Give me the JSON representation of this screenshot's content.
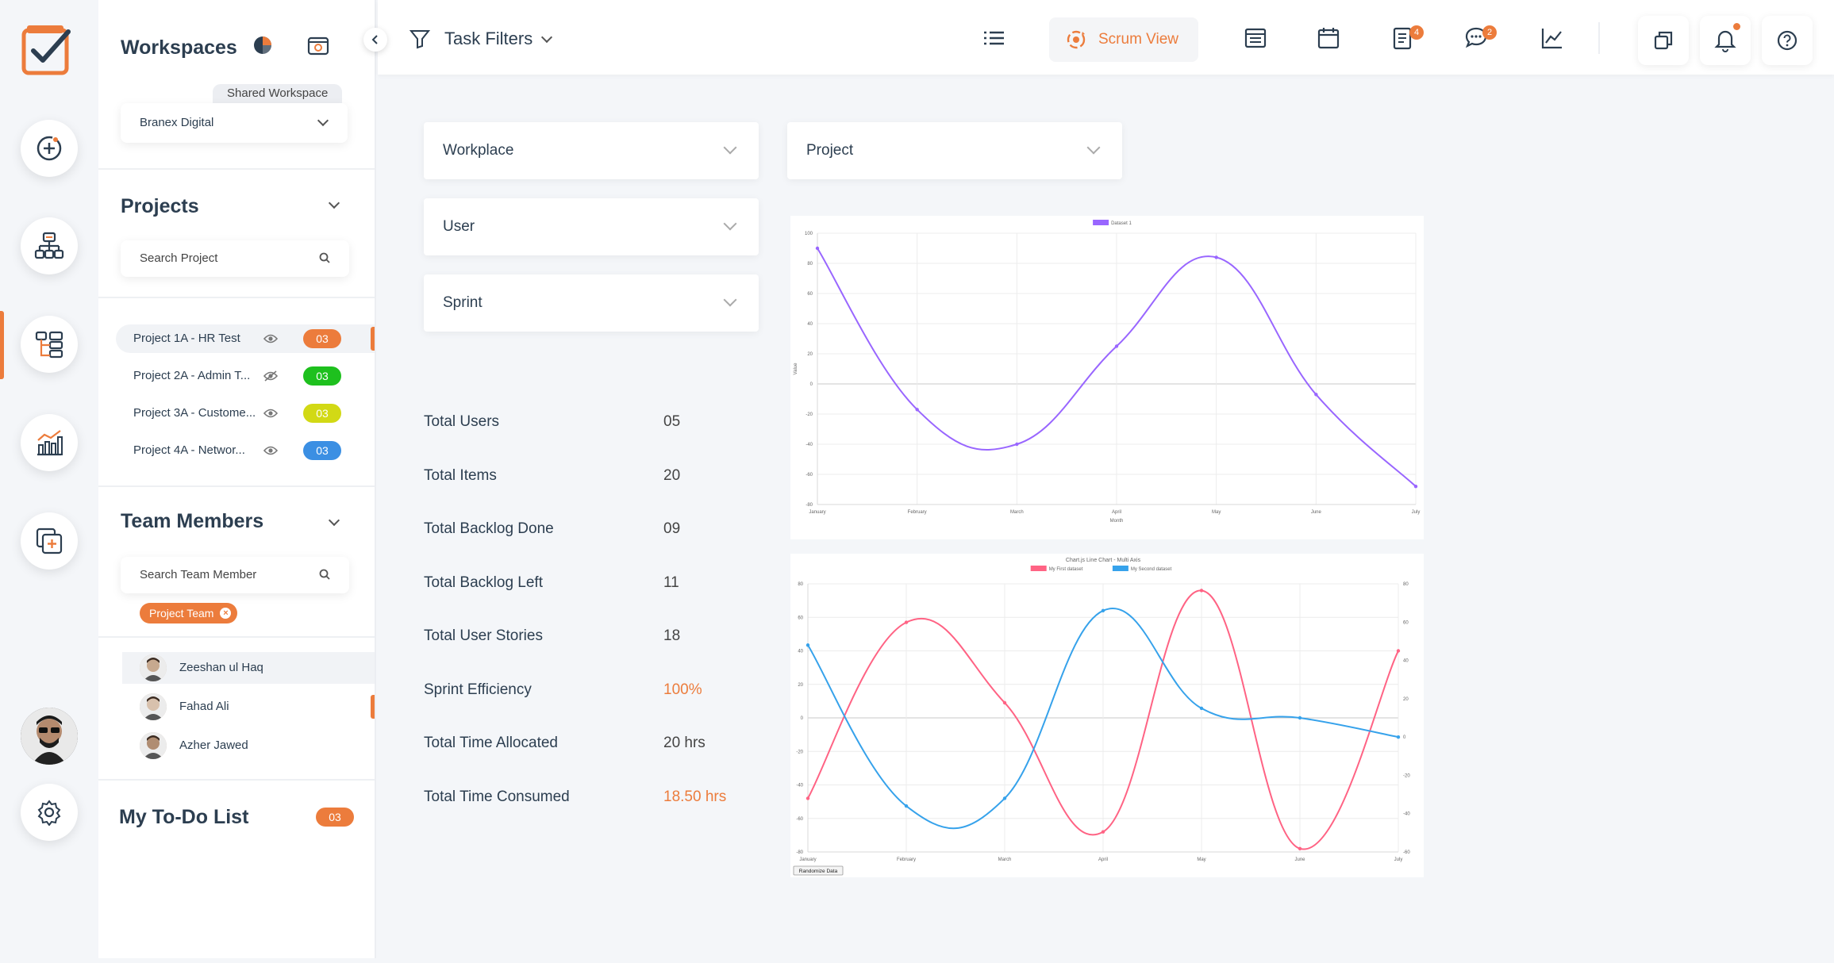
{
  "colors": {
    "accent": "#ec7c3c",
    "badge_orange": "#ec7c3c",
    "badge_green": "#1ec01e",
    "badge_yellow": "#d2d915",
    "badge_blue": "#3b8fe3",
    "chart1_line": "#9966ff",
    "chart2_series1": "#ff6384",
    "chart2_series2": "#36a2eb"
  },
  "rail": {
    "items": [
      "logo-icon",
      "add-icon",
      "hierarchy-icon",
      "board-icon",
      "analytics-icon",
      "copy-add-icon",
      "settings-icon"
    ],
    "active": "board-icon"
  },
  "sidebar": {
    "workspaces_title": "Workspaces",
    "shared_label": "Shared Workspace",
    "workspace_value": "Branex Digital",
    "projects_title": "Projects",
    "project_search_placeholder": "Search Project",
    "projects": [
      {
        "name": "Project 1A - HR Test",
        "count": "03",
        "color": "#ec7c3c",
        "visible": true
      },
      {
        "name": "Project 2A - Admin T...",
        "count": "03",
        "color": "#1ec01e",
        "visible": false
      },
      {
        "name": "Project 3A - Custome...",
        "count": "03",
        "color": "#d2d915",
        "visible": true
      },
      {
        "name": "Project 4A - Networ...",
        "count": "03",
        "color": "#3b8fe3",
        "visible": true
      }
    ],
    "team_title": "Team Members",
    "team_search_placeholder": "Search Team Member",
    "team_chip": "Project Team",
    "members": [
      {
        "name": "Zeeshan ul Haq"
      },
      {
        "name": "Fahad Ali"
      },
      {
        "name": "Azher Jawed"
      }
    ],
    "todo_title": "My To-Do List",
    "todo_count": "03"
  },
  "topbar": {
    "task_filters": "Task Filters",
    "scrum_view": "Scrum View",
    "notes_badge": "4",
    "chat_badge": "2",
    "icons": [
      "list-icon",
      "scrum-icon",
      "table-icon",
      "calendar-icon",
      "notes-icon",
      "chat-icon",
      "trend-icon",
      "windows-icon",
      "bell-icon",
      "help-icon"
    ]
  },
  "filters": {
    "workplace": "Workplace",
    "project": "Project",
    "user": "User",
    "sprint": "Sprint"
  },
  "stats": [
    {
      "label": "Total Users",
      "value": "05",
      "highlight": false
    },
    {
      "label": "Total Items",
      "value": "20",
      "highlight": false
    },
    {
      "label": "Total Backlog Done",
      "value": "09",
      "highlight": false
    },
    {
      "label": "Total Backlog Left",
      "value": "11",
      "highlight": false
    },
    {
      "label": "Total User Stories",
      "value": "18",
      "highlight": false
    },
    {
      "label": "Sprint Efficiency",
      "value": "100%",
      "highlight": true
    },
    {
      "label": "Total Time Allocated",
      "value": "20 hrs",
      "highlight": false
    },
    {
      "label": "Total Time Consumed",
      "value": "18.50 hrs",
      "highlight": true
    }
  ],
  "chart_data": [
    {
      "type": "line",
      "title": "",
      "xlabel": "Month",
      "ylabel": "Value",
      "categories": [
        "January",
        "February",
        "March",
        "April",
        "May",
        "June",
        "July"
      ],
      "ylim": [
        -80,
        100
      ],
      "yticks": [
        100,
        80,
        60,
        40,
        20,
        0,
        -20,
        -40,
        -60,
        -80
      ],
      "legend": "top",
      "grid": true,
      "series": [
        {
          "name": "Dataset 1",
          "values": [
            90,
            -17,
            -40,
            25,
            84,
            -7,
            -68
          ],
          "color": "#9966ff"
        }
      ]
    },
    {
      "type": "line",
      "title": "Chart.js Line Chart - Multi Axis",
      "categories": [
        "January",
        "February",
        "March",
        "April",
        "May",
        "June",
        "July"
      ],
      "ylim": [
        -80,
        80
      ],
      "yticks_left": [
        80,
        60,
        40,
        20,
        0,
        -20,
        -40,
        -60,
        -80
      ],
      "ylim_right": [
        -60,
        80
      ],
      "yticks_right": [
        80,
        60,
        40,
        20,
        0,
        -20,
        -40,
        -60
      ],
      "legend": "top",
      "grid": true,
      "button_label": "Randomize Data",
      "series": [
        {
          "name": "My First dataset",
          "values": [
            -48,
            57,
            9,
            -68,
            76,
            -78,
            40
          ],
          "color": "#ff6384",
          "axis": "left"
        },
        {
          "name": "My Second dataset",
          "values": [
            48,
            -36,
            -32,
            66,
            15,
            10,
            0
          ],
          "color": "#36a2eb",
          "axis": "right"
        }
      ]
    }
  ]
}
